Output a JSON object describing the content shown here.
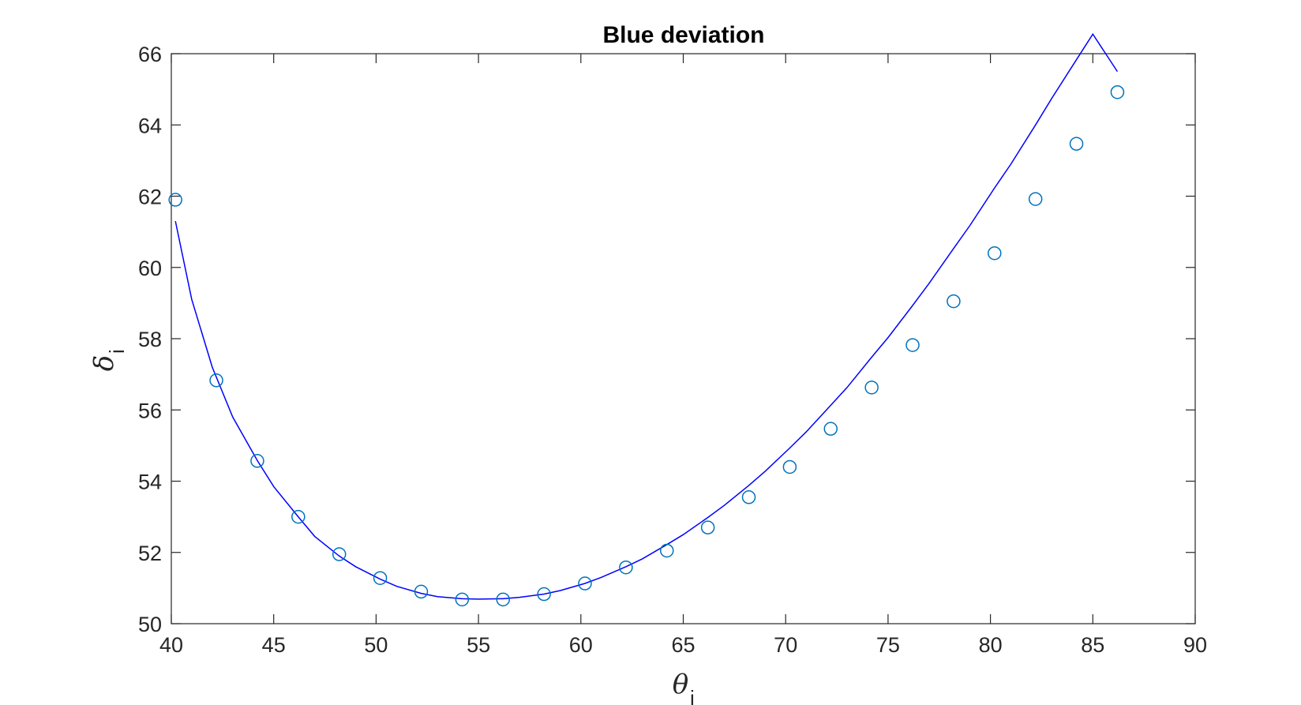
{
  "chart_data": {
    "type": "scatter",
    "title": "Blue deviation",
    "xlabel": {
      "symbol": "θ",
      "subscript": "i"
    },
    "ylabel": {
      "symbol": "δ",
      "subscript": "i"
    },
    "xlim": [
      40,
      90
    ],
    "ylim": [
      50,
      66
    ],
    "xticks": [
      40,
      45,
      50,
      55,
      60,
      65,
      70,
      75,
      80,
      85,
      90
    ],
    "yticks": [
      50,
      52,
      54,
      56,
      58,
      60,
      62,
      64,
      66
    ],
    "grid": false,
    "box": true,
    "series": [
      {
        "kind": "markers",
        "marker": "circle",
        "color": "#0072BD",
        "x": [
          40.2,
          42.2,
          44.2,
          46.2,
          48.2,
          50.2,
          52.2,
          54.2,
          56.2,
          58.2,
          60.2,
          62.2,
          64.2,
          66.2,
          68.2,
          70.2,
          72.2,
          74.2,
          76.2,
          78.2,
          80.2,
          82.2,
          84.2,
          86.2
        ],
        "y": [
          61.9,
          56.83,
          54.57,
          53.0,
          51.95,
          51.28,
          50.9,
          50.68,
          50.68,
          50.83,
          51.13,
          51.58,
          52.05,
          52.7,
          53.55,
          54.4,
          55.47,
          56.63,
          57.82,
          59.05,
          60.4,
          61.92,
          63.47,
          64.92
        ]
      },
      {
        "kind": "line",
        "color": "#0000FF",
        "x": [
          40.2,
          41.0,
          42.0,
          43.0,
          44.2,
          45.0,
          46.2,
          47.0,
          48.2,
          49.0,
          50.2,
          51.0,
          52.2,
          53.0,
          54.2,
          55.0,
          56.2,
          57.0,
          58.2,
          59.0,
          60.2,
          61.0,
          62.2,
          63.0,
          64.2,
          65.0,
          66.2,
          67.0,
          68.2,
          69.0,
          70.2,
          71.0,
          72.2,
          73.0,
          74.2,
          75.0,
          76.2,
          77.0,
          78.2,
          79.0,
          80.2,
          81.0,
          82.2,
          83.0,
          84.2,
          85.0,
          86.2
        ],
        "y": [
          61.3,
          59.1,
          57.2,
          55.8,
          54.58,
          53.85,
          53.0,
          52.45,
          51.9,
          51.6,
          51.25,
          51.05,
          50.85,
          50.76,
          50.7,
          50.69,
          50.7,
          50.74,
          50.83,
          50.93,
          51.13,
          51.3,
          51.6,
          51.82,
          52.22,
          52.5,
          52.98,
          53.32,
          53.88,
          54.28,
          54.93,
          55.38,
          56.13,
          56.63,
          57.48,
          58.03,
          58.93,
          59.55,
          60.53,
          61.18,
          62.23,
          62.9,
          64.0,
          64.75,
          65.83,
          66.55,
          65.5
        ]
      }
    ]
  }
}
